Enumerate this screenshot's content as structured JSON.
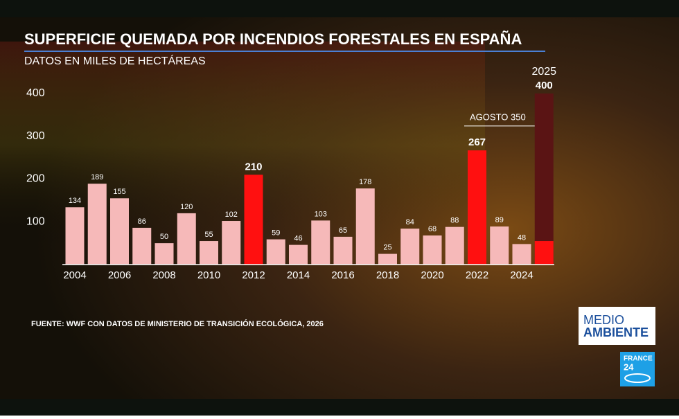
{
  "chart_data": {
    "type": "bar",
    "title": "SUPERFICIE QUEMADA POR INCENDIOS FORESTALES EN ESPAÑA",
    "subtitle": "DATOS EN MILES DE HECTÁREAS",
    "categories": [
      "2004",
      null,
      "2006",
      null,
      "2008",
      null,
      "2010",
      null,
      "2012",
      null,
      "2014",
      null,
      "2016",
      null,
      "2018",
      null,
      "2020",
      null,
      "2022",
      null,
      "2024",
      "2025"
    ],
    "series": [
      {
        "values": [
          134,
          189,
          155,
          86,
          50,
          120,
          55,
          102,
          210,
          59,
          46,
          103,
          65,
          178,
          25,
          84,
          68,
          88,
          267,
          89,
          48,
          400
        ],
        "colors": [
          "#f6b9b9",
          "#f6b9b9",
          "#f6b9b9",
          "#f6b9b9",
          "#f6b9b9",
          "#f6b9b9",
          "#f6b9b9",
          "#f6b9b9",
          "#ff1010",
          "#f6b9b9",
          "#f6b9b9",
          "#f6b9b9",
          "#f6b9b9",
          "#f6b9b9",
          "#f6b9b9",
          "#f6b9b9",
          "#f6b9b9",
          "#f6b9b9",
          "#ff1010",
          "#f6b9b9",
          "#f6b9b9",
          "#5a1414"
        ]
      },
      {
        "values": [
          null,
          null,
          null,
          null,
          null,
          null,
          null,
          null,
          null,
          null,
          null,
          null,
          null,
          null,
          null,
          null,
          null,
          null,
          null,
          null,
          null,
          55
        ],
        "color": "#ff1010"
      }
    ],
    "ylim": [
      0,
      400
    ],
    "yticks": [
      100,
      200,
      300,
      400
    ],
    "annotation": {
      "text": "AGOSTO 350",
      "value": 350
    },
    "source": "FUENTE: WWF CON DATOS DE MINISTERIO DE TRANSICIÓN ECOLÓGICA, 2026"
  },
  "branding": {
    "section": [
      "MEDIO",
      "AMBIENTE"
    ],
    "channel": [
      "FRANCE",
      "24"
    ]
  }
}
